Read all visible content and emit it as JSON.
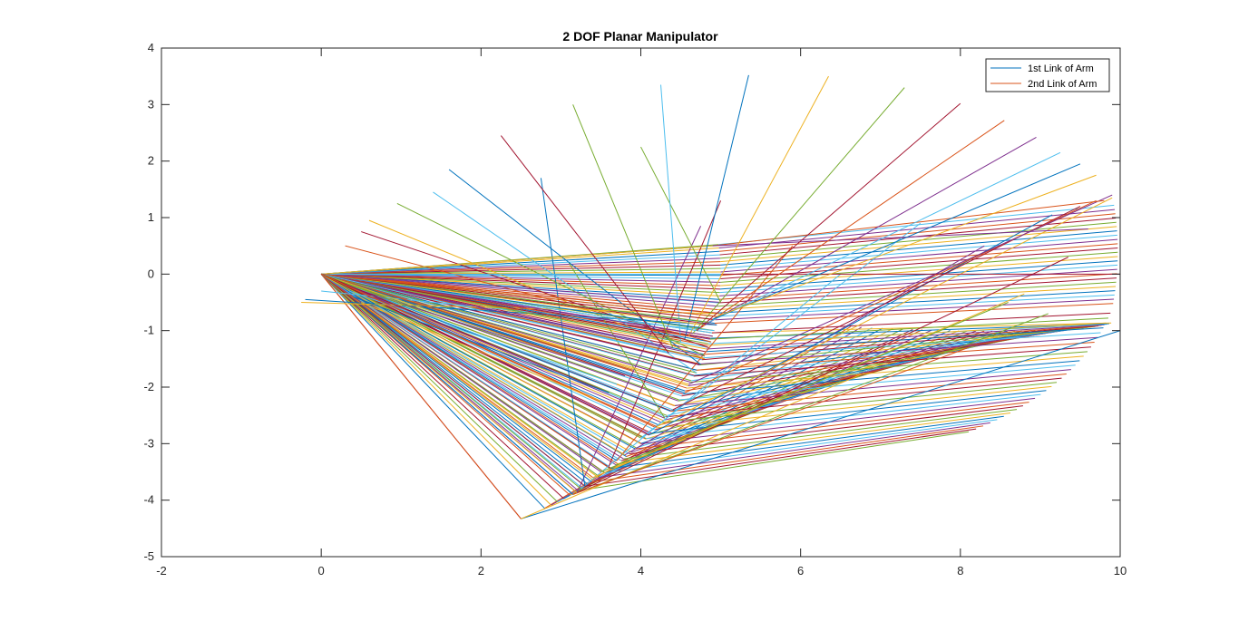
{
  "chart_data": {
    "type": "line",
    "title": "2 DOF Planar Manipulator",
    "xlabel": "",
    "ylabel": "",
    "xlim": [
      -2,
      10
    ],
    "ylim": [
      -5,
      4
    ],
    "xticks": [
      -2,
      0,
      2,
      4,
      6,
      8,
      10
    ],
    "yticks": [
      -5,
      -4,
      -3,
      -2,
      -1,
      0,
      1,
      2,
      3,
      4
    ],
    "grid": false,
    "legend_position": "top-right",
    "color_cycle": [
      "#0072BD",
      "#D95319",
      "#EDB120",
      "#7E2F8E",
      "#77AC30",
      "#4DBEEE",
      "#A2142F"
    ],
    "base": [
      0,
      0
    ],
    "link1_length": 5,
    "link2_length": 5,
    "series": [
      {
        "name": "1st Link of Arm",
        "color": "#0072BD"
      },
      {
        "name": "2nd Link of Arm",
        "color": "#D95319"
      }
    ],
    "configurations": [
      {
        "elbow": [
          2.5,
          -4.33
        ],
        "tip": [
          10.0,
          -1.0
        ]
      },
      {
        "elbow": [
          2.5,
          -4.33
        ],
        "tip": [
          6.8,
          -1.75
        ]
      },
      {
        "elbow": [
          3.15,
          -3.9
        ],
        "tip": [
          9.1,
          -0.7
        ]
      },
      {
        "elbow": [
          3.15,
          -3.9
        ],
        "tip": [
          9.35,
          0.3
        ]
      },
      {
        "elbow": [
          3.15,
          -3.9
        ],
        "tip": [
          8.1,
          -1.3
        ]
      },
      {
        "elbow": [
          3.2,
          -3.87
        ],
        "tip": [
          4.75,
          0.85
        ]
      },
      {
        "elbow": [
          3.25,
          -3.8
        ],
        "tip": [
          6.5,
          0.0
        ]
      },
      {
        "elbow": [
          3.3,
          -3.75
        ],
        "tip": [
          2.75,
          1.7
        ]
      },
      {
        "elbow": [
          3.4,
          -3.6
        ],
        "tip": [
          8.8,
          -0.35
        ]
      },
      {
        "elbow": [
          3.5,
          -3.5
        ],
        "tip": [
          8.6,
          -0.5
        ]
      },
      {
        "elbow": [
          3.6,
          -3.4
        ],
        "tip": [
          5.0,
          1.3
        ]
      },
      {
        "elbow": [
          3.7,
          -3.3
        ],
        "tip": [
          5.9,
          0.5
        ]
      },
      {
        "elbow": [
          3.8,
          -3.2
        ],
        "tip": [
          8.3,
          0.5
        ]
      },
      {
        "elbow": [
          4.0,
          -2.9
        ],
        "tip": [
          7.5,
          0.9
        ]
      },
      {
        "elbow": [
          4.1,
          -2.85
        ],
        "tip": [
          9.15,
          1.05
        ]
      },
      {
        "elbow": [
          4.2,
          -2.7
        ],
        "tip": [
          9.9,
          1.35
        ]
      },
      {
        "elbow": [
          4.3,
          -2.55
        ],
        "tip": [
          3.1,
          0.2
        ]
      },
      {
        "elbow": [
          4.4,
          -2.4
        ],
        "tip": [
          9.5,
          1.2
        ]
      },
      {
        "elbow": [
          4.55,
          -2.1
        ],
        "tip": [
          9.7,
          1.3
        ]
      },
      {
        "elbow": [
          4.6,
          -1.95
        ],
        "tip": [
          9.9,
          1.4
        ]
      },
      {
        "elbow": [
          4.7,
          -1.75
        ],
        "tip": [
          1.4,
          1.45
        ]
      },
      {
        "elbow": [
          4.75,
          -1.6
        ],
        "tip": [
          1.6,
          1.85
        ]
      },
      {
        "elbow": [
          4.8,
          -1.5
        ],
        "tip": [
          0.6,
          0.95
        ]
      },
      {
        "elbow": [
          4.8,
          -1.45
        ],
        "tip": [
          0.95,
          1.25
        ]
      },
      {
        "elbow": [
          4.85,
          -1.3
        ],
        "tip": [
          0.5,
          0.75
        ]
      },
      {
        "elbow": [
          4.88,
          -1.2
        ],
        "tip": [
          0.3,
          0.5
        ]
      },
      {
        "elbow": [
          4.9,
          -1.1
        ],
        "tip": [
          0.05,
          0.0
        ]
      },
      {
        "elbow": [
          4.92,
          -1.0
        ],
        "tip": [
          0.0,
          -0.3
        ]
      },
      {
        "elbow": [
          4.95,
          -0.9
        ],
        "tip": [
          -0.2,
          -0.45
        ]
      },
      {
        "elbow": [
          4.98,
          -0.7
        ],
        "tip": [
          -0.25,
          -0.5
        ]
      },
      {
        "elbow": [
          5.0,
          -0.5
        ],
        "tip": [
          4.0,
          2.25
        ]
      },
      {
        "elbow": [
          5.0,
          0.0
        ],
        "tip": [
          10.0,
          0.0
        ]
      },
      {
        "elbow": [
          4.9,
          0.5
        ],
        "tip": [
          9.8,
          1.3
        ]
      },
      {
        "elbow": [
          4.9,
          0.5
        ],
        "tip": [
          9.6,
          0.8
        ]
      },
      {
        "elbow": [
          4.5,
          -1.2
        ],
        "tip": [
          4.25,
          3.35
        ]
      },
      {
        "elbow": [
          4.55,
          -1.15
        ],
        "tip": [
          5.35,
          3.52
        ]
      },
      {
        "elbow": [
          4.6,
          -1.1
        ],
        "tip": [
          6.35,
          3.5
        ]
      },
      {
        "elbow": [
          4.65,
          -1.05
        ],
        "tip": [
          7.3,
          3.3
        ]
      },
      {
        "elbow": [
          4.7,
          -1.0
        ],
        "tip": [
          8.0,
          3.02
        ]
      },
      {
        "elbow": [
          4.75,
          -0.95
        ],
        "tip": [
          8.55,
          2.72
        ]
      },
      {
        "elbow": [
          4.8,
          -0.9
        ],
        "tip": [
          8.95,
          2.42
        ]
      },
      {
        "elbow": [
          4.85,
          -0.85
        ],
        "tip": [
          9.25,
          2.15
        ]
      },
      {
        "elbow": [
          4.9,
          -0.8
        ],
        "tip": [
          9.5,
          1.95
        ]
      },
      {
        "elbow": [
          4.95,
          -0.75
        ],
        "tip": [
          9.7,
          1.75
        ]
      },
      {
        "elbow": [
          4.4,
          -1.3
        ],
        "tip": [
          3.15,
          3.0
        ]
      },
      {
        "elbow": [
          4.35,
          -1.4
        ],
        "tip": [
          2.25,
          2.45
        ]
      },
      {
        "elbow": [
          3.9,
          -1.7
        ],
        "tip": [
          0.25,
          -0.1
        ]
      },
      {
        "elbow": [
          3.8,
          -1.8
        ],
        "tip": [
          0.3,
          -0.2
        ]
      },
      {
        "elbow": [
          3.7,
          -1.95
        ],
        "tip": [
          0.35,
          -0.3
        ]
      },
      {
        "elbow": [
          3.6,
          -2.1
        ],
        "tip": [
          0.4,
          -0.4
        ]
      },
      {
        "elbow": [
          3.5,
          -2.25
        ],
        "tip": [
          0.5,
          -0.5
        ]
      }
    ],
    "extra_fan": {
      "count": 40,
      "link1_angle_deg_start": -56,
      "link1_angle_deg_end": -12,
      "link2_angle_deg_start": 40,
      "link2_angle_deg_end": 2
    }
  }
}
